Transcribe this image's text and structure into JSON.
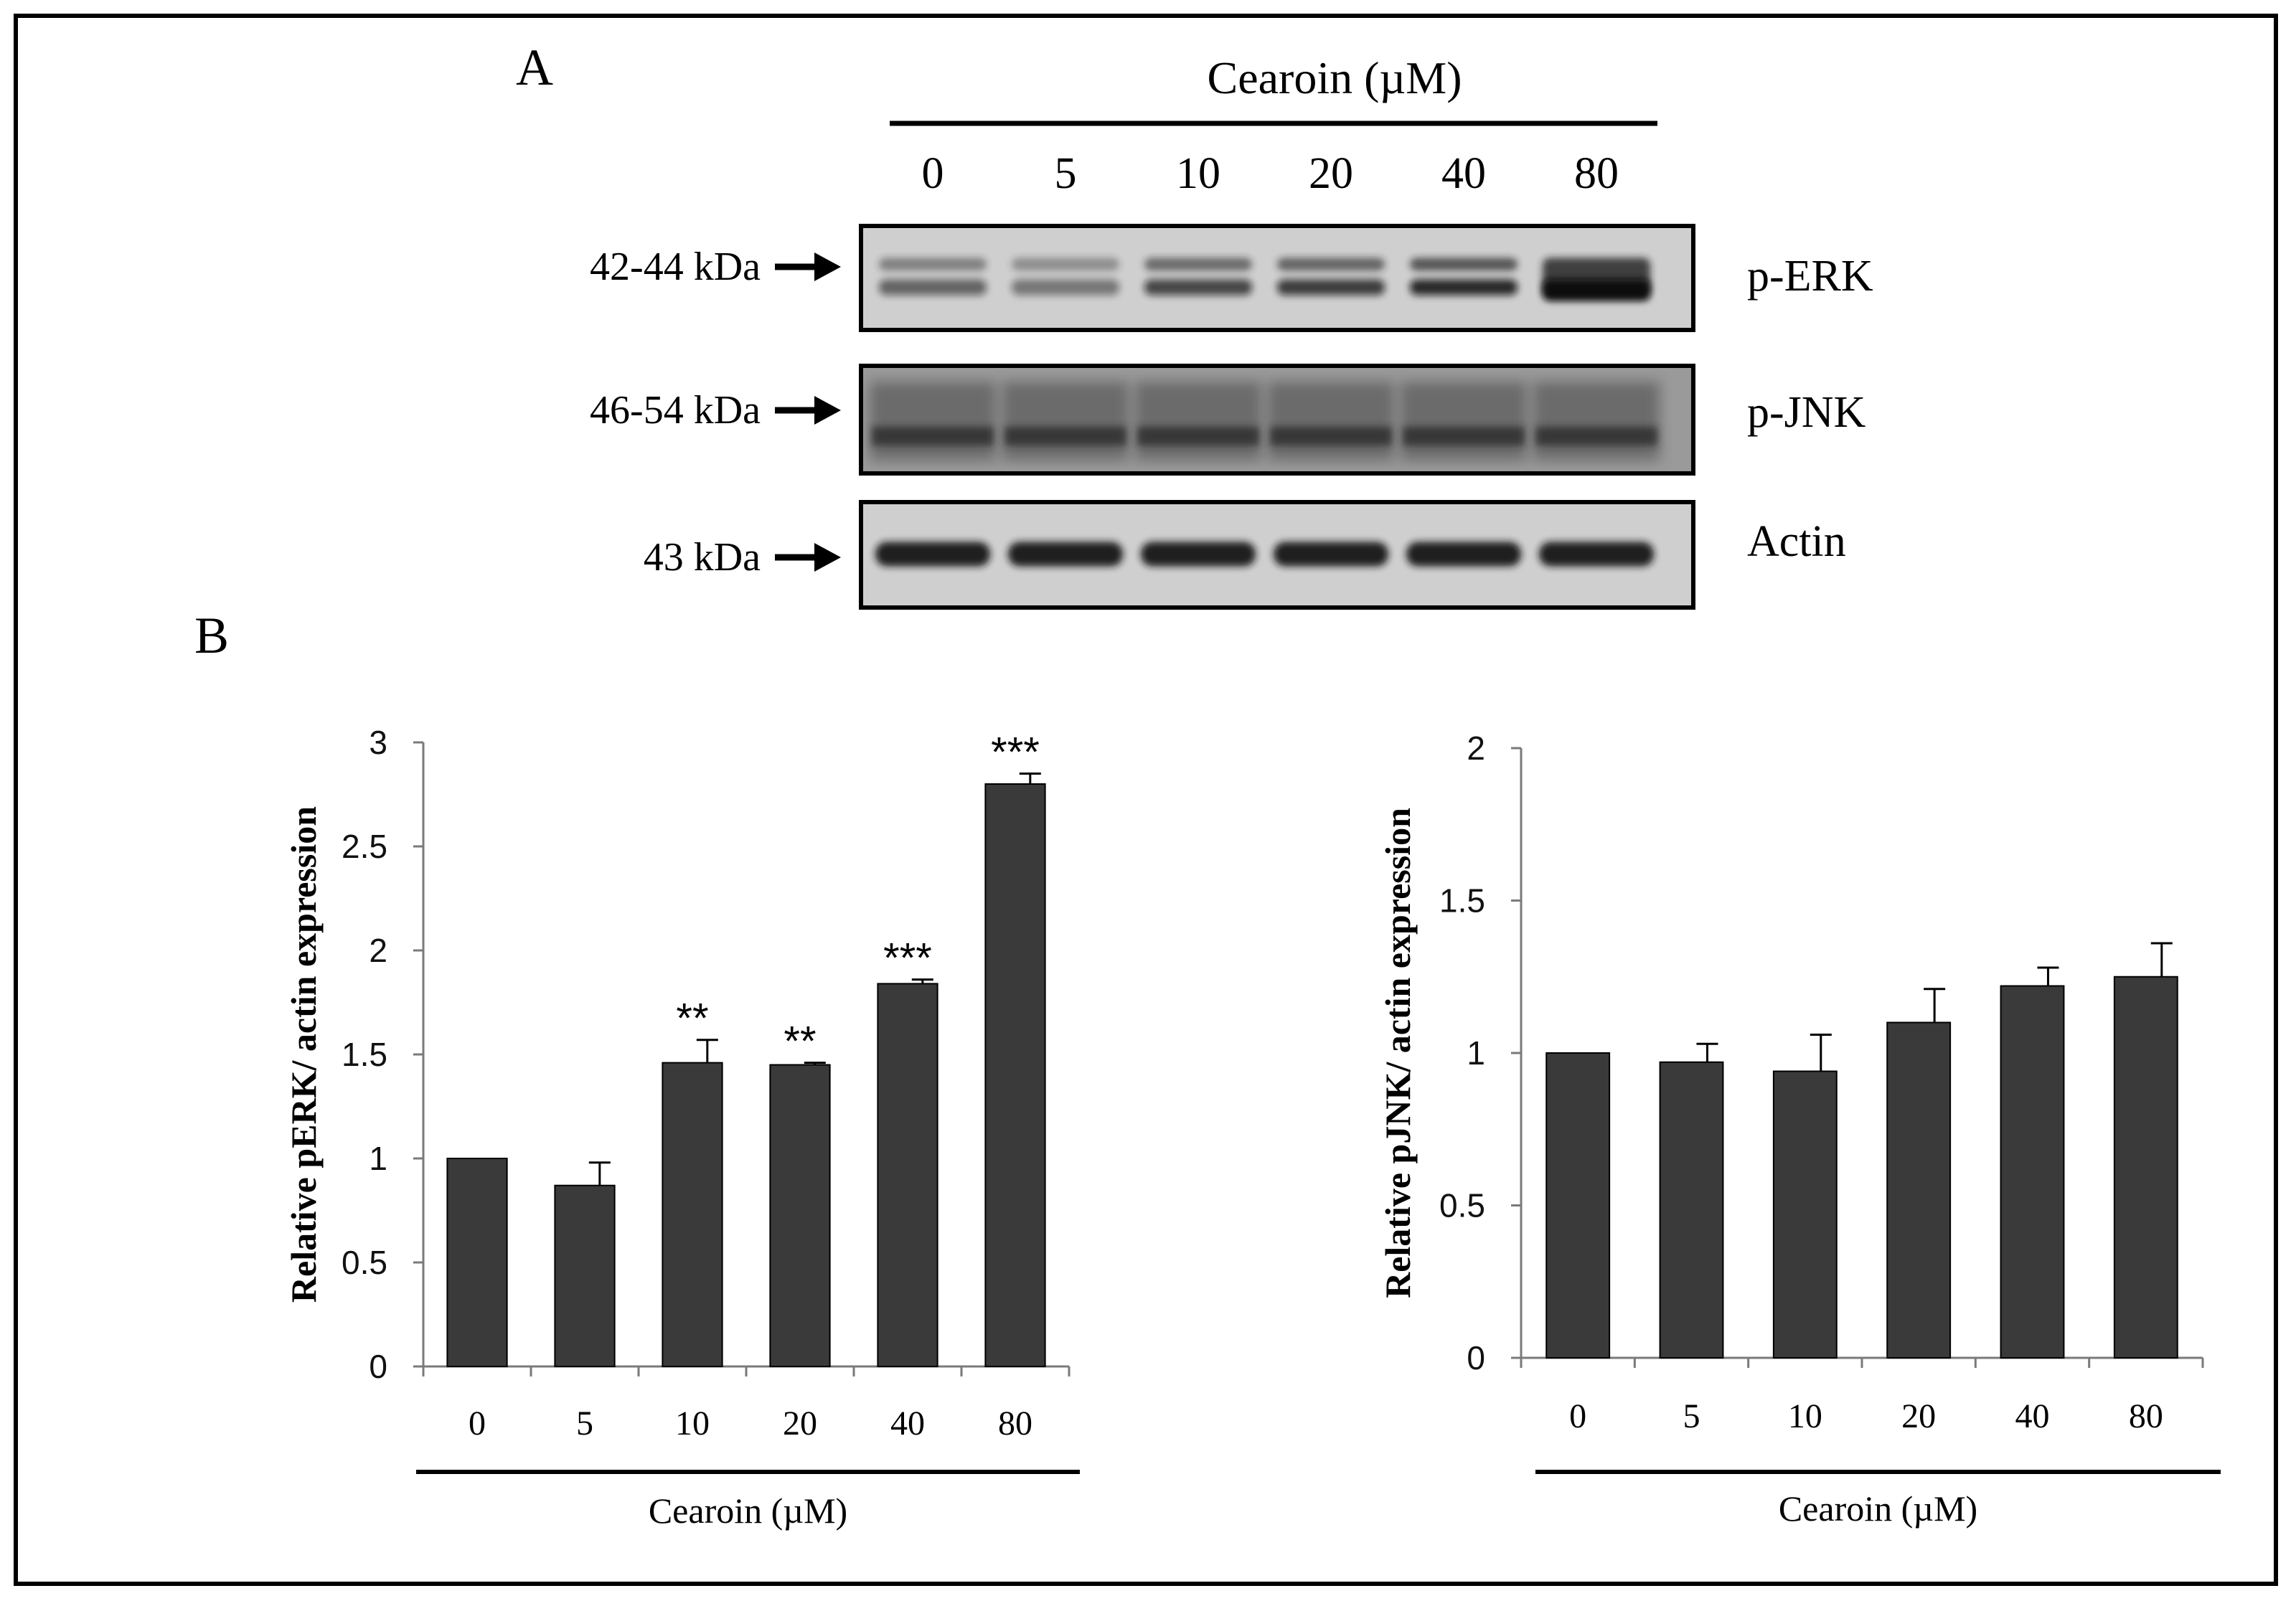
{
  "panel_a": {
    "letter": "A",
    "treatment_label": "Cearoin (µM)",
    "lanes": [
      "0",
      "5",
      "10",
      "20",
      "40",
      "80"
    ],
    "blots": [
      {
        "name": "p-ERK",
        "mw": "42-44 kDa"
      },
      {
        "name": "p-JNK",
        "mw": "46-54 kDa"
      },
      {
        "name": "Actin",
        "mw": "43 kDa"
      }
    ]
  },
  "panel_b": {
    "letter": "B"
  },
  "chart_data": [
    {
      "type": "bar",
      "categories": [
        "0",
        "5",
        "10",
        "20",
        "40",
        "80"
      ],
      "values": [
        1.0,
        0.87,
        1.46,
        1.45,
        1.84,
        2.8
      ],
      "errors": [
        0.0,
        0.11,
        0.11,
        0.01,
        0.02,
        0.05
      ],
      "significance": [
        "",
        "",
        "**",
        "**",
        "***",
        "***"
      ],
      "ylabel": "Relative pERK/ actin expression",
      "xlabel": "Cearoin (µM)",
      "ylim": [
        0,
        3
      ],
      "yticks": [
        "0",
        "0.5",
        "1",
        "1.5",
        "2",
        "2.5",
        "3"
      ],
      "grid": false,
      "bar_color": "#3a3a3a"
    },
    {
      "type": "bar",
      "categories": [
        "0",
        "5",
        "10",
        "20",
        "40",
        "80"
      ],
      "values": [
        1.0,
        0.97,
        0.94,
        1.1,
        1.22,
        1.25
      ],
      "errors": [
        0.0,
        0.06,
        0.12,
        0.11,
        0.06,
        0.11
      ],
      "significance": [
        "",
        "",
        "",
        "",
        "",
        ""
      ],
      "ylabel": "Relative pJNK/ actin expression",
      "xlabel": "Cearoin (µM)",
      "ylim": [
        0,
        2
      ],
      "yticks": [
        "0",
        "0.5",
        "1",
        "1.5",
        "2"
      ],
      "grid": false,
      "bar_color": "#3a3a3a"
    }
  ]
}
